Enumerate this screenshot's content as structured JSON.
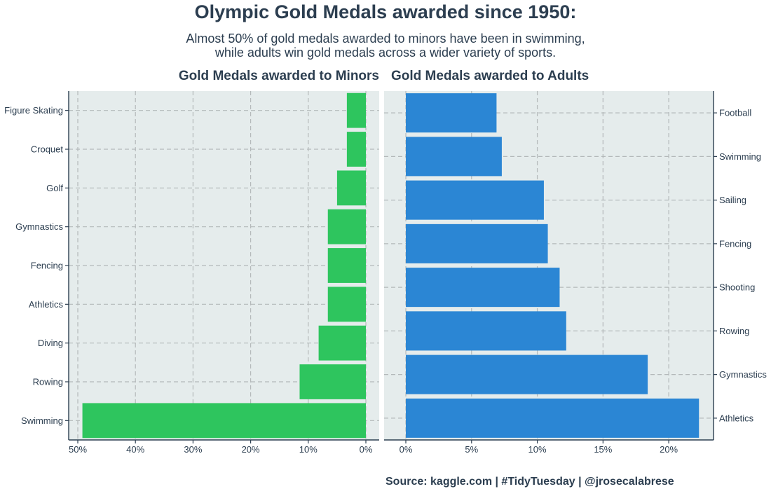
{
  "title": "Olympic Gold Medals awarded since 1950:",
  "subtitle": [
    "Almost 50% of gold medals awarded to minors have been in swimming,",
    "while adults win gold medals across a wider variety of sports."
  ],
  "caption": "Source: kaggle.com | #TidyTuesday | @jrosecalabrese",
  "colors": {
    "text": "#2c3e50",
    "panel_background": "#e5ecec",
    "grid": "#b4b9ba",
    "minors_bar": "#2ec55e",
    "adults_bar": "#2b86d4"
  },
  "chart_data": [
    {
      "type": "bar",
      "orientation": "horizontal",
      "title": "Gold Medals awarded to Minors",
      "x_direction": "reversed",
      "xlim": [
        0,
        50
      ],
      "x_ticks": [
        50,
        40,
        30,
        20,
        10,
        0
      ],
      "x_tick_labels": [
        "50%",
        "40%",
        "30%",
        "20%",
        "10%",
        "0%"
      ],
      "xlabel": "",
      "ylabel": "",
      "grid": true,
      "categories": [
        "Figure Skating",
        "Croquet",
        "Golf",
        "Gymnastics",
        "Fencing",
        "Athletics",
        "Diving",
        "Rowing",
        "Swimming"
      ],
      "values": [
        3.3,
        3.3,
        5.0,
        6.6,
        6.6,
        6.6,
        8.2,
        11.5,
        49.2
      ],
      "unit": "%"
    },
    {
      "type": "bar",
      "orientation": "horizontal",
      "title": "Gold Medals awarded to Adults",
      "xlim": [
        0,
        22.5
      ],
      "x_ticks": [
        0,
        5,
        10,
        15,
        20
      ],
      "x_tick_labels": [
        "0%",
        "5%",
        "10%",
        "15%",
        "20%"
      ],
      "xlabel": "",
      "ylabel": "",
      "grid": true,
      "categories": [
        "Football",
        "Swimming",
        "Sailing",
        "Fencing",
        "Shooting",
        "Rowing",
        "Gymnastics",
        "Athletics"
      ],
      "values": [
        6.9,
        7.3,
        10.5,
        10.8,
        11.7,
        12.2,
        18.4,
        22.3
      ],
      "unit": "%"
    }
  ]
}
